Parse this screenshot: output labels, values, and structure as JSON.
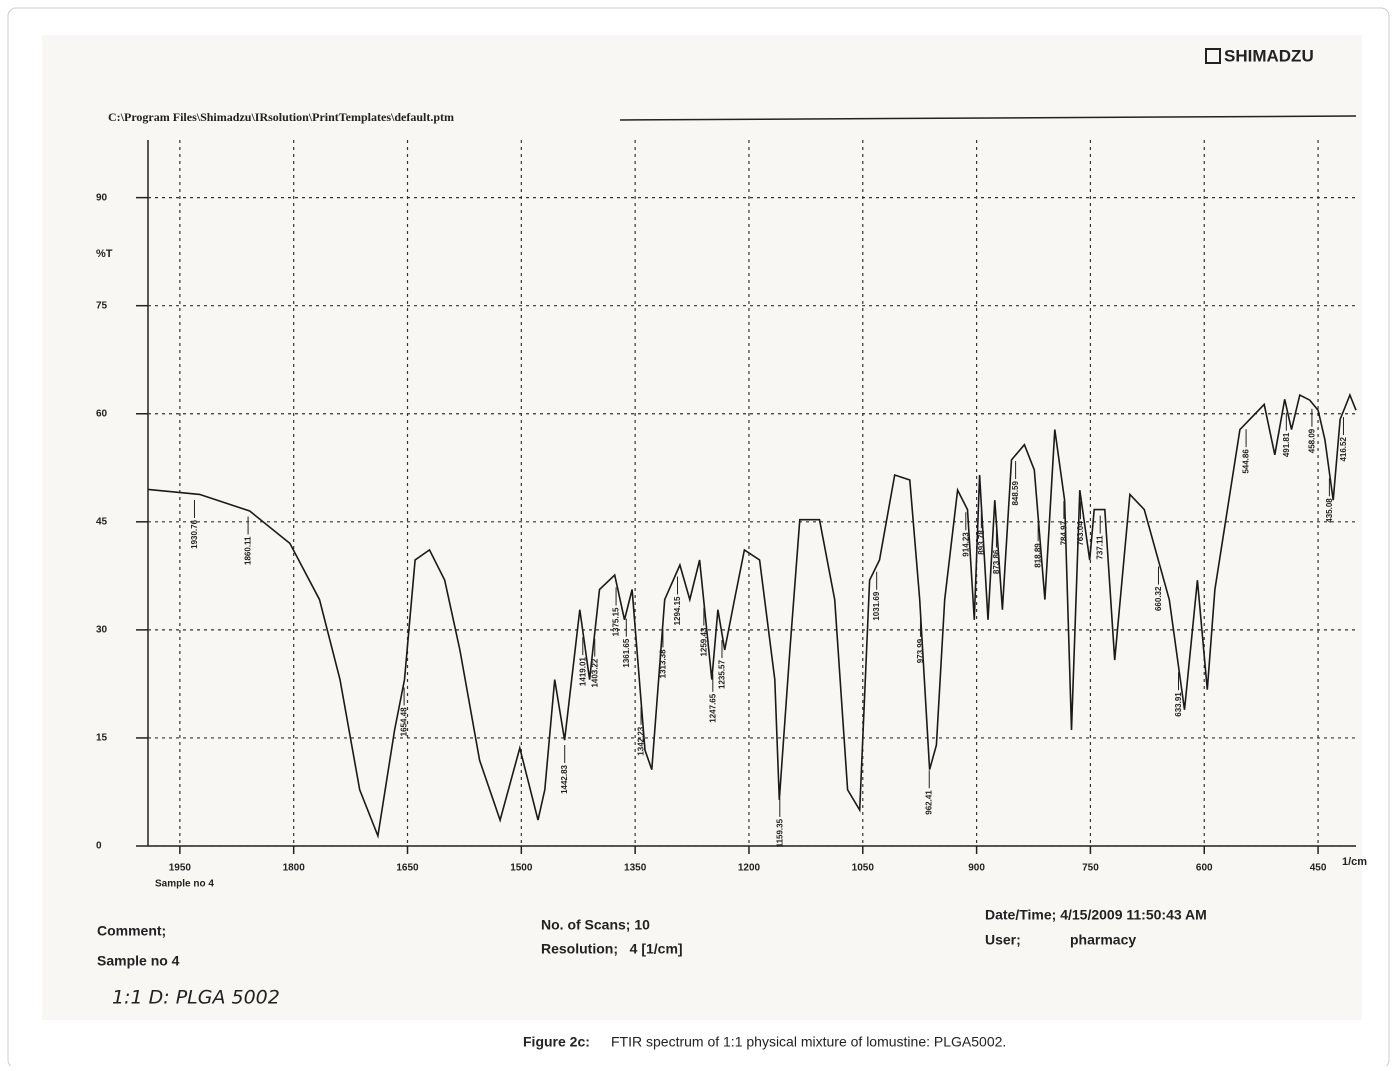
{
  "chart_data": {
    "type": "line",
    "brand": "SHIMADZU",
    "file_path": "C:\\Program Files\\Shimadzu\\IRsolution\\PrintTemplates\\default.ptm",
    "ylabel": "%T",
    "xlabel": "1/cm",
    "sample_tag": "Sample no 4",
    "xlim": [
      1992,
      400
    ],
    "ylim": [
      0,
      98
    ],
    "xticks": [
      1950,
      1800,
      1650,
      1500,
      1350,
      1200,
      1050,
      900,
      750,
      600,
      450
    ],
    "yticks": [
      0,
      15,
      30,
      45,
      60,
      75,
      90
    ],
    "grid": true,
    "color": "#1a1a1a",
    "x": [
      1992,
      1924,
      1858,
      1805,
      1766,
      1739,
      1713,
      1689,
      1667,
      1654,
      1640,
      1621,
      1601,
      1581,
      1555,
      1528,
      1502,
      1478,
      1469,
      1456,
      1443,
      1423,
      1410,
      1397,
      1377,
      1364,
      1354,
      1337,
      1328,
      1311,
      1291,
      1278,
      1265,
      1249,
      1241,
      1232,
      1219,
      1206,
      1186,
      1166,
      1160,
      1146,
      1133,
      1107,
      1087,
      1070,
      1054,
      1041,
      1028,
      1008,
      988,
      975,
      962,
      953,
      942,
      925,
      912,
      903,
      896,
      885,
      876,
      866,
      854,
      837,
      824,
      810,
      797,
      784,
      775,
      764,
      751,
      745,
      731,
      718,
      698,
      679,
      646,
      626,
      609,
      596,
      586,
      553,
      521,
      507,
      494,
      485,
      474,
      461,
      450,
      441,
      430,
      421,
      408,
      400
    ],
    "values": [
      49.5,
      48.8,
      46.5,
      42,
      34.2,
      23.1,
      7.8,
      1.4,
      16.1,
      23.1,
      39.7,
      41.1,
      36.9,
      27.2,
      11.9,
      3.6,
      13.6,
      3.6,
      7.8,
      23.1,
      14.7,
      32.8,
      23.1,
      35.6,
      37.6,
      31.4,
      35.6,
      13.3,
      10.6,
      34.2,
      39,
      34.2,
      39.7,
      23.1,
      32.8,
      27.2,
      34.2,
      41.1,
      39.7,
      23.1,
      6.4,
      27.2,
      45.3,
      45.3,
      34.2,
      7.8,
      5,
      36.9,
      39.7,
      51.5,
      50.8,
      34.2,
      10.6,
      14,
      34.2,
      49.4,
      46.7,
      31.4,
      51.5,
      31.4,
      48,
      32.8,
      53.6,
      55.7,
      52.2,
      34.2,
      57.8,
      48,
      16.1,
      49.4,
      39.7,
      46.7,
      46.7,
      25.8,
      48.8,
      46.7,
      34.2,
      18.9,
      36.9,
      21.7,
      35.6,
      57.8,
      61.3,
      54.3,
      62,
      57.8,
      62.6,
      61.9,
      60.5,
      56.4,
      48,
      59.2,
      62.6,
      60.5
    ],
    "peaks": [
      1930.76,
      1860.11,
      1654.48,
      1442.83,
      1419.01,
      1403.22,
      1375.15,
      1361.65,
      1342.23,
      1313.38,
      1294.15,
      1259.43,
      1247.65,
      1235.57,
      1159.35,
      1031.69,
      973.99,
      962.41,
      914.23,
      893.78,
      873.86,
      848.59,
      818.89,
      784.97,
      763.04,
      737.11,
      660.32,
      633.91,
      544.86,
      491.81,
      458.09,
      435.08,
      416.52
    ],
    "comment_label": "Comment;",
    "comment_value": "Sample no 4",
    "handwritten": "1:1 D: PLGA 5002",
    "scans": "No. of Scans; 10",
    "resolution": "Resolution;   4 [1/cm]",
    "datetime": "Date/Time; 4/15/2009 11:50:43 AM",
    "user_label": "User;",
    "user_value": "pharmacy",
    "caption_label": "Figure 2c:",
    "caption": "FTIR spectrum of 1:1 physical mixture of lomustine: PLGA5002."
  }
}
